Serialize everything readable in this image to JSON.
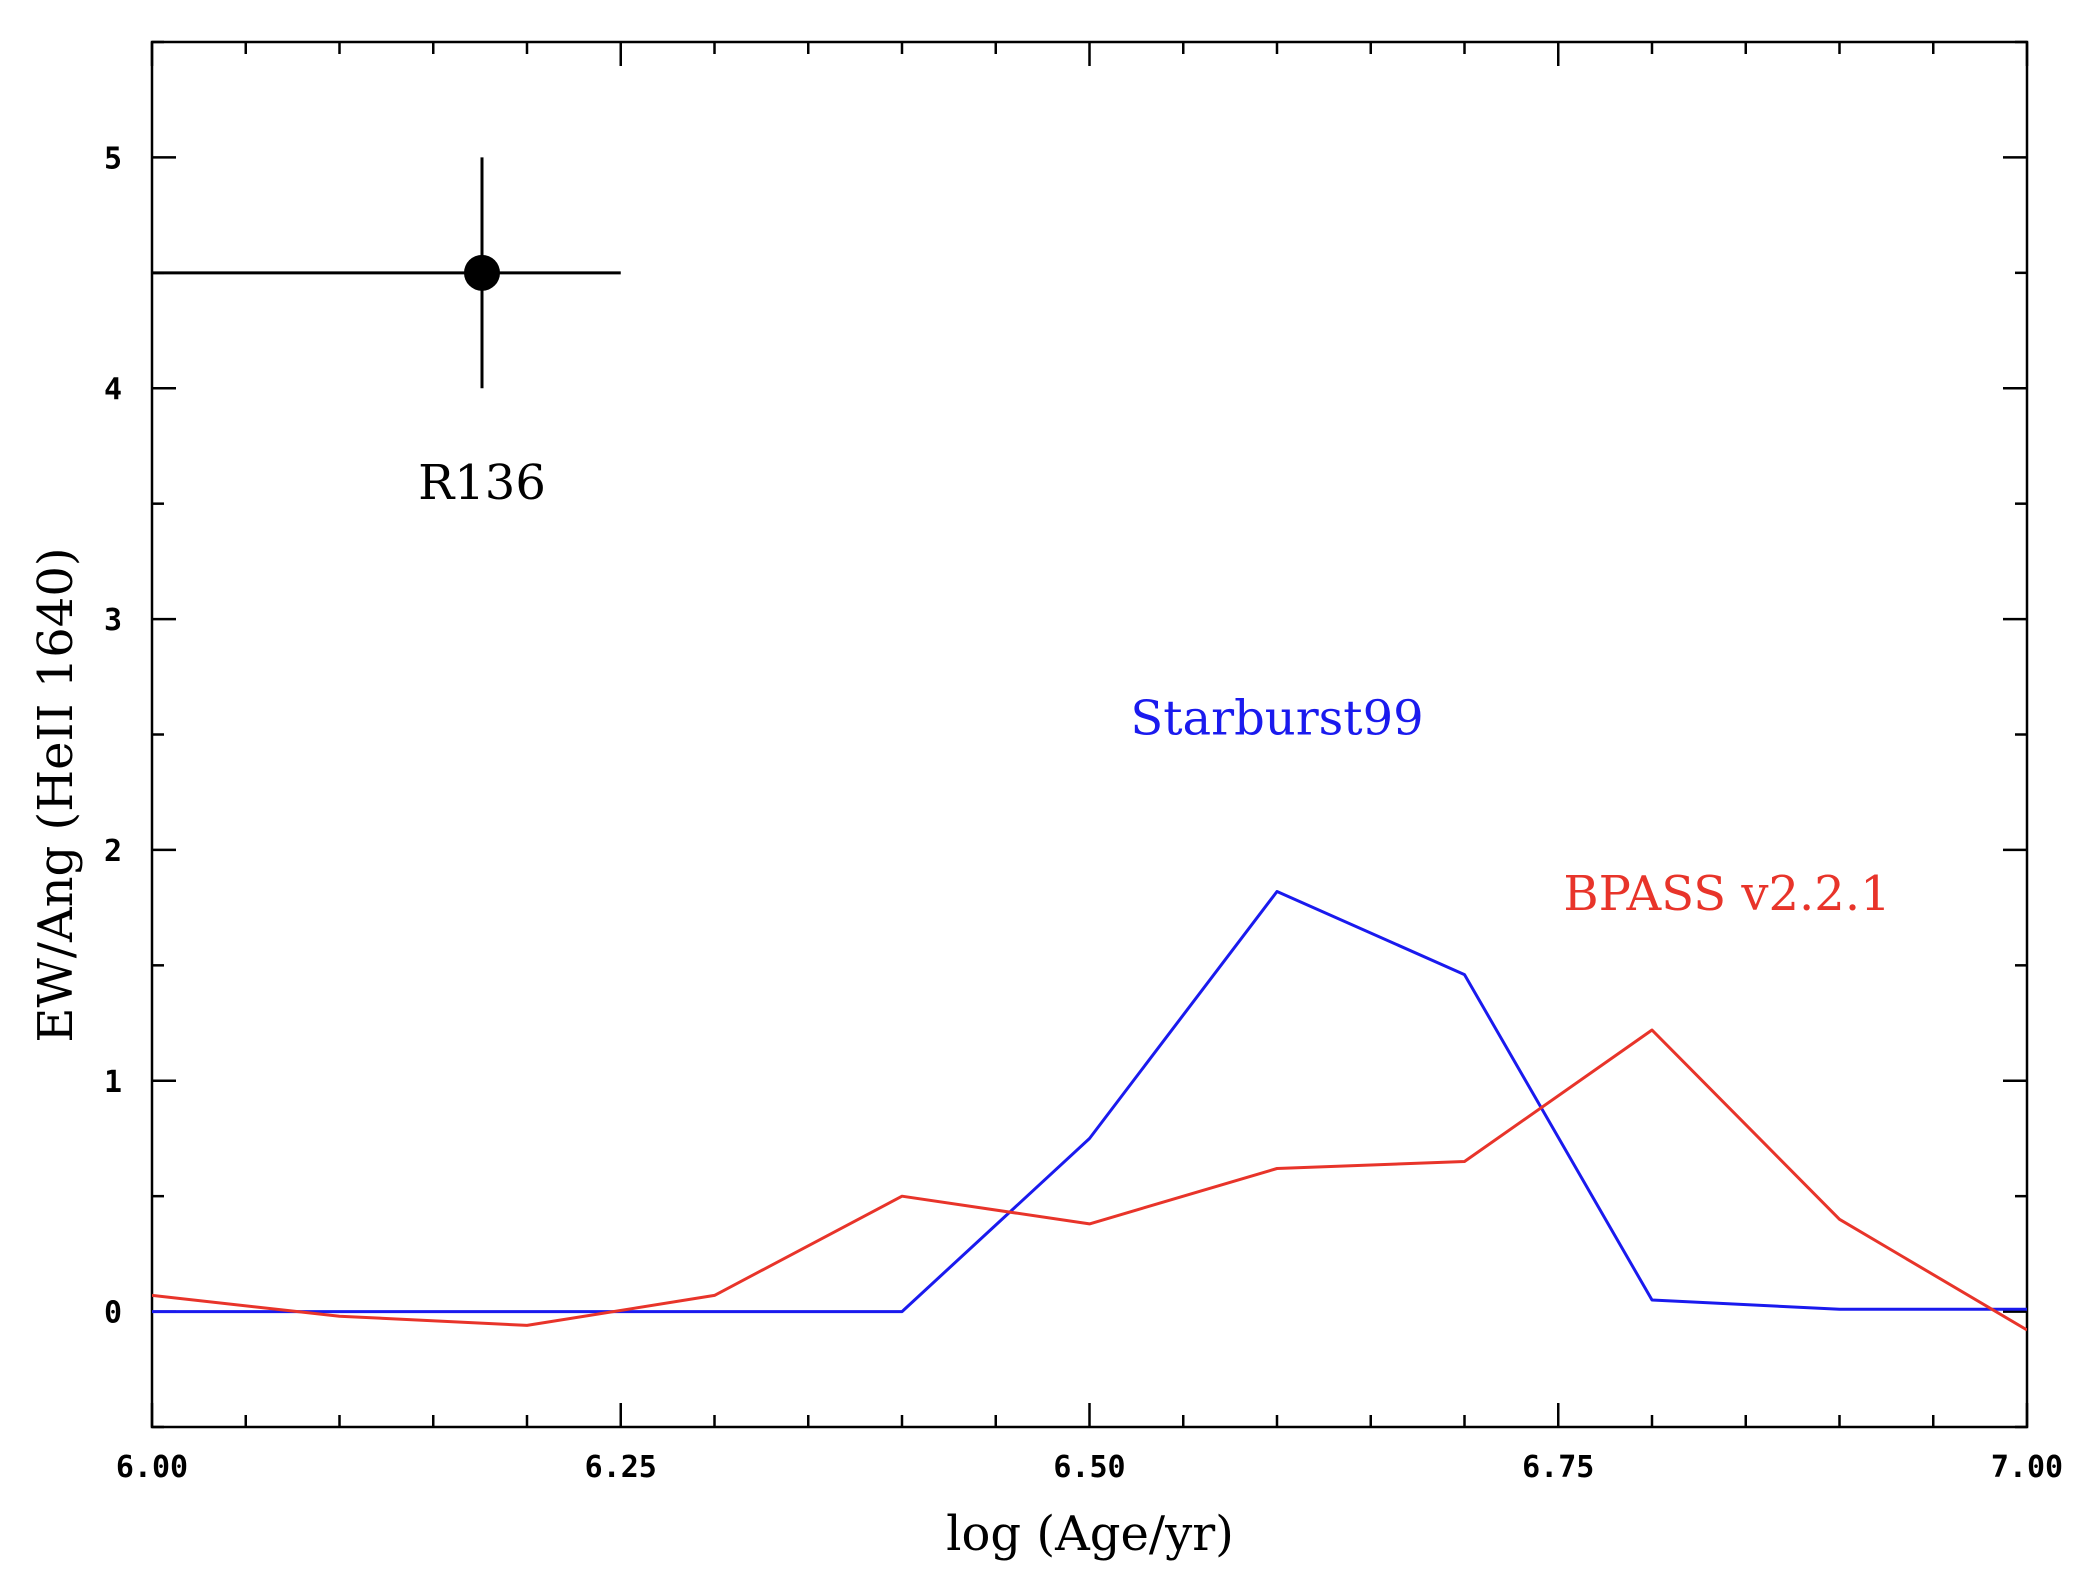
{
  "chart_data": {
    "type": "line",
    "title": "",
    "xlabel": "log (Age/yr)",
    "ylabel": "EW/Ang (HeII 1640)",
    "xlim": [
      6.0,
      7.0
    ],
    "ylim": [
      -0.5,
      5.5
    ],
    "x_ticks": [
      6.0,
      6.25,
      6.5,
      6.75,
      7.0
    ],
    "x_tick_labels": [
      "6.00",
      "6.25",
      "6.50",
      "6.75",
      "7.00"
    ],
    "x_minor_step": 0.05,
    "y_ticks": [
      0,
      1,
      2,
      3,
      4,
      5
    ],
    "y_tick_labels": [
      "0",
      "1",
      "2",
      "3",
      "4",
      "5"
    ],
    "y_minor_step": 0.5,
    "grid": false,
    "series": [
      {
        "name": "Starburst99",
        "color": "#1a1aee",
        "x": [
          6.0,
          6.1,
          6.2,
          6.3,
          6.4,
          6.5,
          6.6,
          6.7,
          6.8,
          6.9,
          7.0
        ],
        "y": [
          0.0,
          0.0,
          0.0,
          0.0,
          0.0,
          0.75,
          1.82,
          1.46,
          0.05,
          0.01,
          0.01
        ]
      },
      {
        "name": "BPASS v2.2.1",
        "color": "#e8342a",
        "x": [
          6.0,
          6.1,
          6.2,
          6.3,
          6.4,
          6.5,
          6.6,
          6.7,
          6.8,
          6.9,
          7.0
        ],
        "y": [
          0.07,
          -0.02,
          -0.06,
          0.07,
          0.5,
          0.38,
          0.62,
          0.65,
          1.22,
          0.4,
          -0.08
        ]
      }
    ],
    "points": [
      {
        "name": "R136",
        "x": 6.176,
        "y": 4.5,
        "xerr_low": 0.176,
        "xerr_high": 0.074,
        "yerr": 0.5,
        "color": "#000000"
      }
    ],
    "annotations": [
      {
        "text": "R136",
        "x": 6.176,
        "y": 3.52,
        "color": "#000000"
      },
      {
        "text": "Starburst99",
        "x": 6.6,
        "y": 2.5,
        "color": "#1a1aee"
      },
      {
        "text": "BPASS v2.2.1",
        "x": 6.84,
        "y": 1.74,
        "color": "#e8342a"
      }
    ]
  }
}
